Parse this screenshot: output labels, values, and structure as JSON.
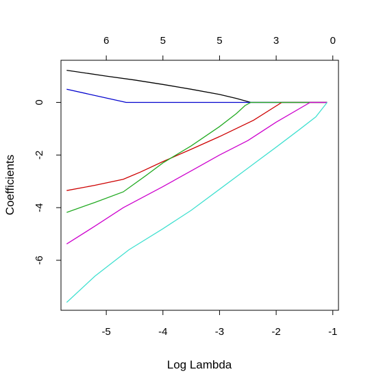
{
  "chart_data": {
    "type": "line",
    "title": "",
    "xlabel": "Log Lambda",
    "ylabel": "Coefficients",
    "xlim": [
      -5.8,
      -0.9
    ],
    "ylim": [
      -7.9,
      1.6
    ],
    "x_ticks": [
      -5,
      -4,
      -3,
      -2,
      -1
    ],
    "y_ticks": [
      -6,
      -4,
      -2,
      0
    ],
    "top_ticks": [
      {
        "x": -5,
        "label": "6"
      },
      {
        "x": -4,
        "label": "5"
      },
      {
        "x": -3,
        "label": "5"
      },
      {
        "x": -2,
        "label": "3"
      },
      {
        "x": -1,
        "label": "0"
      }
    ],
    "grid": false,
    "series": [
      {
        "color": "#000000",
        "x": [
          -5.7,
          -5.0,
          -4.5,
          -4.0,
          -3.5,
          -3.0,
          -2.7,
          -2.45,
          -1.1
        ],
        "y": [
          1.22,
          1.0,
          0.85,
          0.68,
          0.5,
          0.3,
          0.15,
          0.0,
          0.0
        ]
      },
      {
        "color": "#0000cd",
        "x": [
          -5.7,
          -4.65,
          -1.1
        ],
        "y": [
          0.5,
          0.0,
          0.0
        ]
      },
      {
        "color": "#cd0000",
        "x": [
          -5.7,
          -5.2,
          -4.7,
          -4.4,
          -4.0,
          -3.5,
          -3.0,
          -2.4,
          -1.9,
          -1.1
        ],
        "y": [
          -3.35,
          -3.15,
          -2.92,
          -2.65,
          -2.25,
          -1.78,
          -1.3,
          -0.68,
          0.0,
          0.0
        ]
      },
      {
        "color": "#22aa22",
        "x": [
          -5.7,
          -5.2,
          -4.7,
          -4.3,
          -4.0,
          -3.5,
          -3.0,
          -2.7,
          -2.55,
          -2.45,
          -1.1
        ],
        "y": [
          -4.18,
          -3.8,
          -3.4,
          -2.78,
          -2.3,
          -1.65,
          -0.92,
          -0.42,
          -0.12,
          0.0,
          0.0
        ]
      },
      {
        "color": "#cd00cd",
        "x": [
          -5.7,
          -5.2,
          -4.7,
          -4.0,
          -3.5,
          -3.0,
          -2.5,
          -2.0,
          -1.4,
          -1.1
        ],
        "y": [
          -5.38,
          -4.7,
          -4.0,
          -3.2,
          -2.6,
          -2.0,
          -1.45,
          -0.75,
          0.0,
          0.0
        ]
      },
      {
        "color": "#40e0d0",
        "x": [
          -5.7,
          -5.2,
          -4.6,
          -4.0,
          -3.5,
          -3.0,
          -2.5,
          -2.0,
          -1.6,
          -1.3,
          -1.1
        ],
        "y": [
          -7.6,
          -6.6,
          -5.6,
          -4.8,
          -4.1,
          -3.3,
          -2.5,
          -1.7,
          -1.05,
          -0.55,
          0.0
        ]
      }
    ]
  }
}
